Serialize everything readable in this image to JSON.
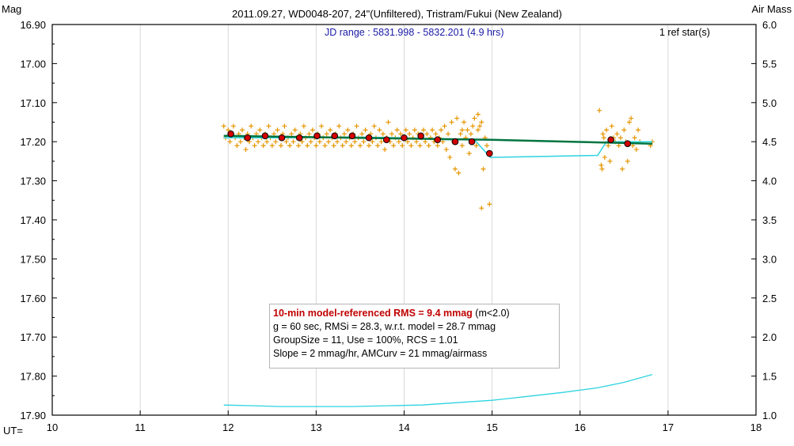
{
  "header": {
    "left_axis_title": "Mag",
    "right_axis_title": "Air Mass",
    "title": "2011.09.27, WD0048-207, 24\"(Unfiltered), Tristram/Fukui (New Zealand)",
    "jd_range": "JD range : 5831.998 - 5832.201 (4.9 hrs)",
    "ref_stars": "1 ref star(s)",
    "ut_label": "UT="
  },
  "stats_box": {
    "rms_main": "10-min model-referenced RMS = 9.4 mmag",
    "rms_cond": " (m<2.0)",
    "line2": "g = 60 sec, RMSi = 28.3, w.r.t. model = 28.7 mmag",
    "line3": "GroupSize = 11, Use = 100%, RCS = 1.01",
    "line4": "Slope = 2 mmag/hr, AMCurv = 21 mmag/airmass"
  },
  "colors": {
    "points": "#e69500",
    "means_fill": "#d40000",
    "model_line": "#00743f",
    "cyan_line": "#2ed3e0",
    "axis": "#000000",
    "grid": "#d8d8d8"
  },
  "chart_data": {
    "type": "scatter",
    "x_axis": {
      "label": "UT=",
      "range": [
        10,
        18
      ],
      "ticks": [
        "10",
        "11",
        "12",
        "13",
        "14",
        "15",
        "16",
        "17",
        "18"
      ]
    },
    "y_left": {
      "label": "Mag",
      "range": [
        16.9,
        17.9
      ],
      "inverted": true,
      "ticks": [
        "16.90",
        "17.00",
        "17.10",
        "17.20",
        "17.30",
        "17.40",
        "17.50",
        "17.60",
        "17.70",
        "17.80",
        "17.90"
      ]
    },
    "y_right": {
      "label": "Air Mass",
      "range": [
        1.0,
        6.0
      ],
      "ticks": [
        "6.0",
        "5.5",
        "5.0",
        "4.5",
        "4.0",
        "3.5",
        "3.0",
        "2.5",
        "2.0",
        "1.5",
        "1.0"
      ]
    },
    "grid": "vertical only",
    "series": [
      {
        "kind": "individual-measurements",
        "marker": "plus",
        "points": [
          [
            11.95,
            17.16
          ],
          [
            11.97,
            17.19
          ],
          [
            12.0,
            17.17
          ],
          [
            12.02,
            17.2
          ],
          [
            12.04,
            17.18
          ],
          [
            12.06,
            17.16
          ],
          [
            12.08,
            17.19
          ],
          [
            12.1,
            17.21
          ],
          [
            12.12,
            17.18
          ],
          [
            12.14,
            17.2
          ],
          [
            12.16,
            17.17
          ],
          [
            12.18,
            17.19
          ],
          [
            12.2,
            17.22
          ],
          [
            12.22,
            17.18
          ],
          [
            12.24,
            17.2
          ],
          [
            12.26,
            17.16
          ],
          [
            12.28,
            17.19
          ],
          [
            12.3,
            17.21
          ],
          [
            12.32,
            17.18
          ],
          [
            12.34,
            17.2
          ],
          [
            12.36,
            17.17
          ],
          [
            12.38,
            17.19
          ],
          [
            12.4,
            17.21
          ],
          [
            12.42,
            17.18
          ],
          [
            12.44,
            17.2
          ],
          [
            12.46,
            17.16
          ],
          [
            12.48,
            17.19
          ],
          [
            12.5,
            17.21
          ],
          [
            12.52,
            17.18
          ],
          [
            12.54,
            17.2
          ],
          [
            12.56,
            17.17
          ],
          [
            12.58,
            17.19
          ],
          [
            12.6,
            17.21
          ],
          [
            12.62,
            17.18
          ],
          [
            12.64,
            17.16
          ],
          [
            12.66,
            17.2
          ],
          [
            12.68,
            17.19
          ],
          [
            12.7,
            17.21
          ],
          [
            12.72,
            17.18
          ],
          [
            12.74,
            17.2
          ],
          [
            12.76,
            17.17
          ],
          [
            12.78,
            17.19
          ],
          [
            12.8,
            17.21
          ],
          [
            12.82,
            17.18
          ],
          [
            12.84,
            17.2
          ],
          [
            12.86,
            17.16
          ],
          [
            12.88,
            17.19
          ],
          [
            12.9,
            17.21
          ],
          [
            12.92,
            17.18
          ],
          [
            12.94,
            17.2
          ],
          [
            12.96,
            17.17
          ],
          [
            12.98,
            17.19
          ],
          [
            13.0,
            17.21
          ],
          [
            13.02,
            17.18
          ],
          [
            13.04,
            17.2
          ],
          [
            13.06,
            17.16
          ],
          [
            13.08,
            17.19
          ],
          [
            13.1,
            17.21
          ],
          [
            13.12,
            17.18
          ],
          [
            13.14,
            17.2
          ],
          [
            13.16,
            17.17
          ],
          [
            13.18,
            17.19
          ],
          [
            13.2,
            17.21
          ],
          [
            13.22,
            17.18
          ],
          [
            13.24,
            17.2
          ],
          [
            13.26,
            17.16
          ],
          [
            13.28,
            17.19
          ],
          [
            13.3,
            17.21
          ],
          [
            13.32,
            17.18
          ],
          [
            13.34,
            17.2
          ],
          [
            13.36,
            17.17
          ],
          [
            13.38,
            17.19
          ],
          [
            13.4,
            17.21
          ],
          [
            13.42,
            17.18
          ],
          [
            13.44,
            17.2
          ],
          [
            13.46,
            17.16
          ],
          [
            13.48,
            17.19
          ],
          [
            13.5,
            17.21
          ],
          [
            13.52,
            17.18
          ],
          [
            13.54,
            17.2
          ],
          [
            13.56,
            17.17
          ],
          [
            13.58,
            17.19
          ],
          [
            13.6,
            17.21
          ],
          [
            13.62,
            17.18
          ],
          [
            13.64,
            17.2
          ],
          [
            13.66,
            17.16
          ],
          [
            13.68,
            17.19
          ],
          [
            13.7,
            17.21
          ],
          [
            13.72,
            17.17
          ],
          [
            13.74,
            17.2
          ],
          [
            13.76,
            17.18
          ],
          [
            13.78,
            17.22
          ],
          [
            13.8,
            17.19
          ],
          [
            13.82,
            17.15
          ],
          [
            13.84,
            17.2
          ],
          [
            13.86,
            17.18
          ],
          [
            13.88,
            17.21
          ],
          [
            13.9,
            17.19
          ],
          [
            13.92,
            17.17
          ],
          [
            13.94,
            17.2
          ],
          [
            13.96,
            17.18
          ],
          [
            13.98,
            17.21
          ],
          [
            14.0,
            17.19
          ],
          [
            14.02,
            17.17
          ],
          [
            14.04,
            17.2
          ],
          [
            14.06,
            17.18
          ],
          [
            14.08,
            17.21
          ],
          [
            14.1,
            17.19
          ],
          [
            14.12,
            17.17
          ],
          [
            14.14,
            17.2
          ],
          [
            14.16,
            17.18
          ],
          [
            14.18,
            17.21
          ],
          [
            14.2,
            17.19
          ],
          [
            14.22,
            17.17
          ],
          [
            14.24,
            17.2
          ],
          [
            14.26,
            17.18
          ],
          [
            14.28,
            17.21
          ],
          [
            14.3,
            17.19
          ],
          [
            14.32,
            17.17
          ],
          [
            14.34,
            17.2
          ],
          [
            14.36,
            17.18
          ],
          [
            14.38,
            17.21
          ],
          [
            14.4,
            17.19
          ],
          [
            14.42,
            17.17
          ],
          [
            14.44,
            17.2
          ],
          [
            14.46,
            17.16
          ],
          [
            14.48,
            17.22
          ],
          [
            14.5,
            17.18
          ],
          [
            14.52,
            17.24
          ],
          [
            14.54,
            17.15
          ],
          [
            14.56,
            17.2
          ],
          [
            14.58,
            17.27
          ],
          [
            14.6,
            17.14
          ],
          [
            14.62,
            17.28
          ],
          [
            14.64,
            17.18
          ],
          [
            14.66,
            17.21
          ],
          [
            14.68,
            17.15
          ],
          [
            14.7,
            17.19
          ],
          [
            14.72,
            17.17
          ],
          [
            14.74,
            17.23
          ],
          [
            14.76,
            17.18
          ],
          [
            14.78,
            17.16
          ],
          [
            14.8,
            17.14
          ],
          [
            14.82,
            17.21
          ],
          [
            14.84,
            17.17
          ],
          [
            14.86,
            17.16
          ],
          [
            14.88,
            17.15
          ],
          [
            14.9,
            17.27
          ],
          [
            14.92,
            17.19
          ],
          [
            14.94,
            17.21
          ],
          [
            14.88,
            17.37
          ],
          [
            14.97,
            17.36
          ],
          [
            14.84,
            17.13
          ],
          [
            14.66,
            17.17
          ],
          [
            16.22,
            17.12
          ],
          [
            16.24,
            17.26
          ],
          [
            16.26,
            17.18
          ],
          [
            16.28,
            17.24
          ],
          [
            16.3,
            17.17
          ],
          [
            16.32,
            17.21
          ],
          [
            16.34,
            17.25
          ],
          [
            16.36,
            17.16
          ],
          [
            16.38,
            17.19
          ],
          [
            16.4,
            17.2
          ],
          [
            16.42,
            17.18
          ],
          [
            16.44,
            17.21
          ],
          [
            16.46,
            17.19
          ],
          [
            16.48,
            17.27
          ],
          [
            16.5,
            17.17
          ],
          [
            16.52,
            17.2
          ],
          [
            16.54,
            17.25
          ],
          [
            16.56,
            17.15
          ],
          [
            16.58,
            17.14
          ],
          [
            16.6,
            17.21
          ],
          [
            16.62,
            17.19
          ],
          [
            16.64,
            17.22
          ],
          [
            16.66,
            17.17
          ],
          [
            16.68,
            17.2
          ],
          [
            16.8,
            17.21
          ],
          [
            16.82,
            17.2
          ],
          [
            16.25,
            17.27
          ],
          [
            16.27,
            17.19
          ]
        ]
      },
      {
        "kind": "group-means",
        "marker": "circle",
        "points": [
          [
            12.03,
            17.18
          ],
          [
            12.22,
            17.19
          ],
          [
            12.42,
            17.185
          ],
          [
            12.61,
            17.19
          ],
          [
            12.81,
            17.19
          ],
          [
            13.01,
            17.185
          ],
          [
            13.21,
            17.185
          ],
          [
            13.41,
            17.185
          ],
          [
            13.6,
            17.19
          ],
          [
            13.8,
            17.195
          ],
          [
            14.0,
            17.19
          ],
          [
            14.19,
            17.185
          ],
          [
            14.38,
            17.195
          ],
          [
            14.58,
            17.2
          ],
          [
            14.77,
            17.2
          ],
          [
            14.97,
            17.23
          ],
          [
            16.35,
            17.195
          ],
          [
            16.54,
            17.205
          ]
        ]
      },
      {
        "kind": "model-fit",
        "line": "solid",
        "points": [
          [
            11.95,
            17.185
          ],
          [
            14.98,
            17.195
          ]
        ],
        "points2": [
          [
            14.98,
            17.195
          ],
          [
            16.82,
            17.205
          ]
        ]
      },
      {
        "kind": "model-with-airmass",
        "line": "solid",
        "points": [
          [
            11.95,
            17.19
          ],
          [
            12.6,
            17.19
          ],
          [
            13.4,
            17.188
          ],
          [
            14.0,
            17.19
          ],
          [
            14.5,
            17.195
          ],
          [
            14.8,
            17.195
          ],
          [
            14.98,
            17.24
          ],
          [
            16.2,
            17.235
          ],
          [
            16.3,
            17.2
          ],
          [
            16.82,
            17.2
          ]
        ]
      },
      {
        "kind": "airmass",
        "axis": "right",
        "line": "solid",
        "points": [
          [
            11.95,
            1.13
          ],
          [
            12.3,
            1.12
          ],
          [
            12.6,
            1.11
          ],
          [
            13.0,
            1.11
          ],
          [
            13.4,
            1.11
          ],
          [
            13.8,
            1.12
          ],
          [
            14.2,
            1.13
          ],
          [
            14.6,
            1.16
          ],
          [
            15.0,
            1.19
          ],
          [
            15.4,
            1.24
          ],
          [
            15.8,
            1.29
          ],
          [
            16.2,
            1.35
          ],
          [
            16.5,
            1.42
          ],
          [
            16.82,
            1.52
          ]
        ]
      }
    ]
  }
}
